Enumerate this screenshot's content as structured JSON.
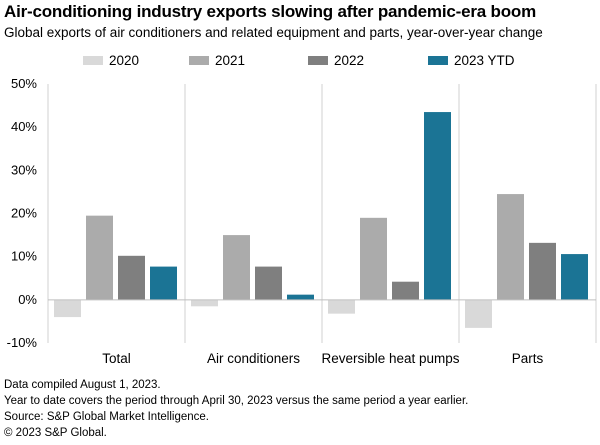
{
  "title": "Air-conditioning industry exports slowing after pandemic-era boom",
  "subtitle": "Global exports of air conditioners and related equipment and parts, year-over-year change",
  "legend": [
    {
      "label": "2020",
      "color": "#d9d9d9"
    },
    {
      "label": "2021",
      "color": "#ababab"
    },
    {
      "label": "2022",
      "color": "#7f7f7f"
    },
    {
      "label": "2023 YTD",
      "color": "#1b7495"
    }
  ],
  "chart_data": {
    "type": "bar",
    "title": "Air-conditioning industry exports slowing after pandemic-era boom",
    "subtitle": "Global exports of air conditioners and related equipment and parts, year-over-year change",
    "categories": [
      "Total",
      "Air conditioners",
      "Reversible heat pumps",
      "Parts"
    ],
    "series": [
      {
        "name": "2020",
        "color": "#d9d9d9",
        "values": [
          -4,
          -1.5,
          -3.2,
          -6.5
        ]
      },
      {
        "name": "2021",
        "color": "#ababab",
        "values": [
          19.5,
          15,
          19,
          24.5
        ]
      },
      {
        "name": "2022",
        "color": "#7f7f7f",
        "values": [
          10.2,
          7.7,
          4.2,
          13.2
        ]
      },
      {
        "name": "2023 YTD",
        "color": "#1b7495",
        "values": [
          7.7,
          1.2,
          43.5,
          10.6
        ]
      }
    ],
    "yticks": [
      "50%",
      "40%",
      "30%",
      "20%",
      "10%",
      "0%",
      "-10%"
    ],
    "ytick_values": [
      50,
      40,
      30,
      20,
      10,
      0,
      -10
    ],
    "ylim": [
      -10,
      50
    ],
    "xlabel": "",
    "ylabel": "",
    "legend_position": "top-center",
    "grid": false
  },
  "notes": [
    "Data compiled August 1, 2023.",
    "Year to date covers the period through April 30, 2023 versus the same period a year earlier.",
    "Source: S&P Global Market Intelligence.",
    "© 2023 S&P Global."
  ]
}
